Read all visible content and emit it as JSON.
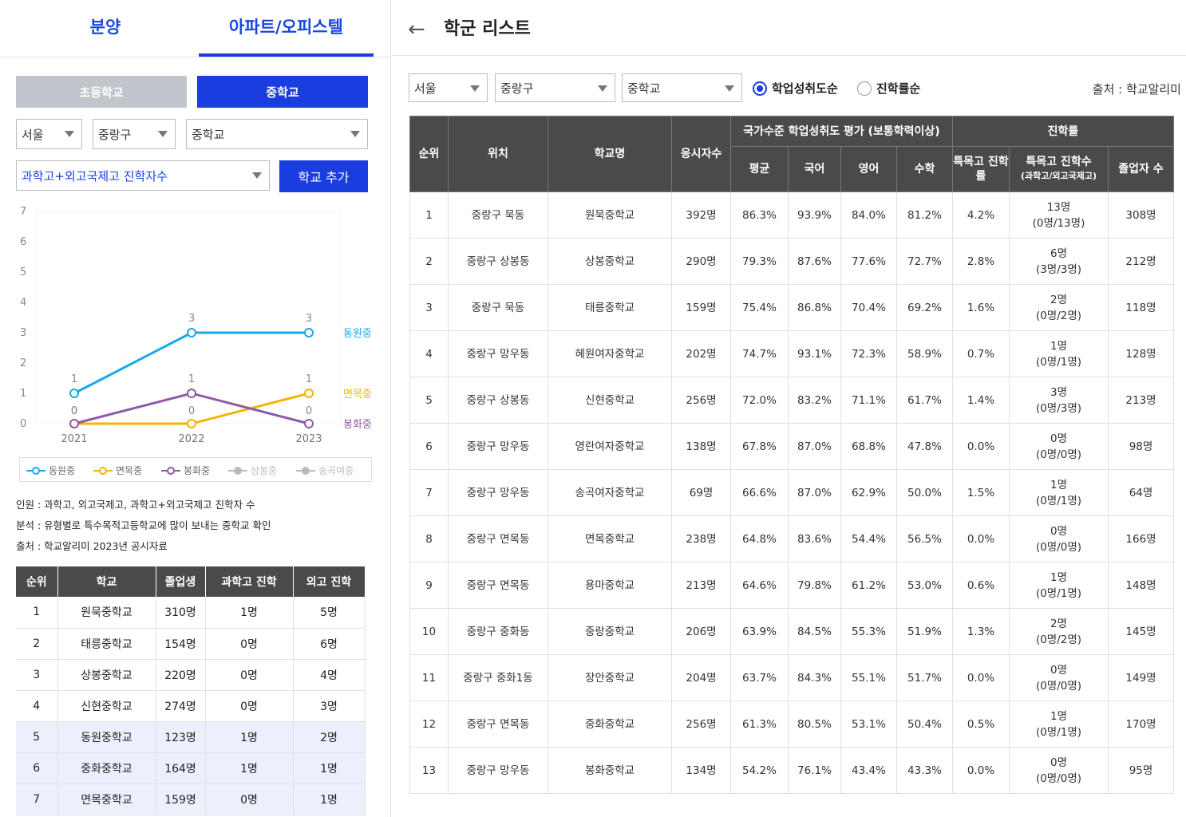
{
  "nav_tabs": {
    "tab1": "분양",
    "tab2": "아파트/오피스텔"
  },
  "level_tabs": {
    "elementary": "초등학교",
    "middle": "중학교"
  },
  "left_filters": {
    "city": "서울",
    "district": "중랑구",
    "school_type": "중학교",
    "metric": "과학고+외고국제고 진학자수",
    "add_button": "학교 추가"
  },
  "chart_data": {
    "type": "line",
    "categories": [
      "2021",
      "2022",
      "2023"
    ],
    "ylim": [
      0,
      7
    ],
    "yticks": [
      "0",
      "1",
      "2",
      "3",
      "4",
      "5",
      "6",
      "7"
    ],
    "series": [
      {
        "name": "동원중",
        "values": [
          1,
          3,
          3
        ],
        "color": "#1ba8e8"
      },
      {
        "name": "면목중",
        "values": [
          0,
          0,
          1
        ],
        "color": "#f4b400"
      },
      {
        "name": "봉화중",
        "values": [
          0,
          1,
          0
        ],
        "color": "#8e5aa8"
      }
    ],
    "legend": [
      {
        "name": "동원중",
        "color": "#1ba8e8"
      },
      {
        "name": "면목중",
        "color": "#f4b400"
      },
      {
        "name": "봉화중",
        "color": "#8e5aa8"
      },
      {
        "name": "상봉중",
        "color": "#bbbbbb"
      },
      {
        "name": "송곡여중",
        "color": "#bbbbbb"
      }
    ]
  },
  "notes": {
    "line1": "인원 : 과학고, 외고국제고, 과학고+외고국제고 진학자 수",
    "line2": "분석 : 유형별로 특수목적고등학교에 많이 보내는 중학교 확인",
    "line3": "출처 : 학교알리미 2023년 공시자료"
  },
  "left_table": {
    "headers": [
      "순위",
      "학교",
      "졸업생",
      "과학고 진학",
      "외고 진학"
    ],
    "rows": [
      [
        "1",
        "원묵중학교",
        "310명",
        "1명",
        "5명"
      ],
      [
        "2",
        "태릉중학교",
        "154명",
        "0명",
        "6명"
      ],
      [
        "3",
        "상봉중학교",
        "220명",
        "0명",
        "4명"
      ],
      [
        "4",
        "신현중학교",
        "274명",
        "0명",
        "3명"
      ],
      [
        "5",
        "동원중학교",
        "123명",
        "1명",
        "2명"
      ],
      [
        "6",
        "중화중학교",
        "164명",
        "1명",
        "1명"
      ],
      [
        "7",
        "면목중학교",
        "159명",
        "0명",
        "1명"
      ]
    ]
  },
  "right": {
    "title": "학군 리스트",
    "filters": {
      "city": "서울",
      "district": "중랑구",
      "school_type": "중학교"
    },
    "sort_options": [
      "학업성취도순",
      "진학률순"
    ],
    "source": "출처 : 학교알리미",
    "headers": {
      "rank": "순위",
      "location": "위치",
      "school": "학교명",
      "applicants": "응시자수",
      "achievement_group": "국가수준 학업성취도 평가 (보통학력이상)",
      "avg": "평균",
      "korean": "국어",
      "english": "영어",
      "math": "수학",
      "admission_group": "진학률",
      "special_rate": "특목고 진학률",
      "special_count": "특목고 진학수",
      "special_count_sub": "(과학고/외고국제고)",
      "graduates": "졸업자 수"
    },
    "rows": [
      [
        "1",
        "중랑구 묵동",
        "원묵중학교",
        "392명",
        "86.3%",
        "93.9%",
        "84.0%",
        "81.2%",
        "4.2%",
        "13명",
        "(0명/13명)",
        "308명"
      ],
      [
        "2",
        "중랑구 상봉동",
        "상봉중학교",
        "290명",
        "79.3%",
        "87.6%",
        "77.6%",
        "72.7%",
        "2.8%",
        "6명",
        "(3명/3명)",
        "212명"
      ],
      [
        "3",
        "중랑구 묵동",
        "태릉중학교",
        "159명",
        "75.4%",
        "86.8%",
        "70.4%",
        "69.2%",
        "1.6%",
        "2명",
        "(0명/2명)",
        "118명"
      ],
      [
        "4",
        "중랑구 망우동",
        "혜원여자중학교",
        "202명",
        "74.7%",
        "93.1%",
        "72.3%",
        "58.9%",
        "0.7%",
        "1명",
        "(0명/1명)",
        "128명"
      ],
      [
        "5",
        "중랑구 상봉동",
        "신현중학교",
        "256명",
        "72.0%",
        "83.2%",
        "71.1%",
        "61.7%",
        "1.4%",
        "3명",
        "(0명/3명)",
        "213명"
      ],
      [
        "6",
        "중랑구 망우동",
        "영란여자중학교",
        "138명",
        "67.8%",
        "87.0%",
        "68.8%",
        "47.8%",
        "0.0%",
        "0명",
        "(0명/0명)",
        "98명"
      ],
      [
        "7",
        "중랑구 망우동",
        "송곡여자중학교",
        "69명",
        "66.6%",
        "87.0%",
        "62.9%",
        "50.0%",
        "1.5%",
        "1명",
        "(0명/1명)",
        "64명"
      ],
      [
        "8",
        "중랑구 면목동",
        "면목중학교",
        "238명",
        "64.8%",
        "83.6%",
        "54.4%",
        "56.5%",
        "0.0%",
        "0명",
        "(0명/0명)",
        "166명"
      ],
      [
        "9",
        "중랑구 면목동",
        "용마중학교",
        "213명",
        "64.6%",
        "79.8%",
        "61.2%",
        "53.0%",
        "0.6%",
        "1명",
        "(0명/1명)",
        "148명"
      ],
      [
        "10",
        "중랑구 중화동",
        "중랑중학교",
        "206명",
        "63.9%",
        "84.5%",
        "55.3%",
        "51.9%",
        "1.3%",
        "2명",
        "(0명/2명)",
        "145명"
      ],
      [
        "11",
        "중랑구 중화1동",
        "장안중학교",
        "204명",
        "63.7%",
        "84.3%",
        "55.1%",
        "51.7%",
        "0.0%",
        "0명",
        "(0명/0명)",
        "149명"
      ],
      [
        "12",
        "중랑구 면목동",
        "중화중학교",
        "256명",
        "61.3%",
        "80.5%",
        "53.1%",
        "50.4%",
        "0.5%",
        "1명",
        "(0명/1명)",
        "170명"
      ],
      [
        "13",
        "중랑구 망우동",
        "봉화중학교",
        "134명",
        "54.2%",
        "76.1%",
        "43.4%",
        "43.3%",
        "0.0%",
        "0명",
        "(0명/0명)",
        "95명"
      ]
    ]
  }
}
